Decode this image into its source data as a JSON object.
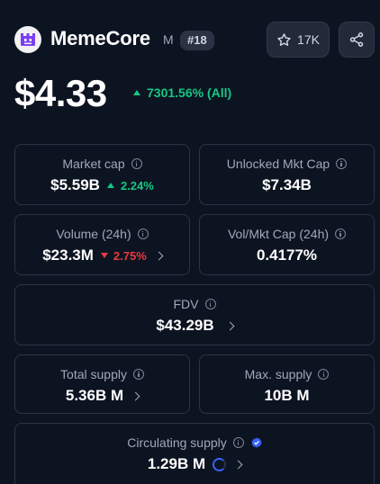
{
  "header": {
    "name": "MemeCore",
    "symbol": "M",
    "rank": "#18",
    "watchlist_count": "17K",
    "icons": {
      "logo": "memecore-logo",
      "watch": "star-icon",
      "share": "share-icon"
    }
  },
  "price": {
    "value": "$4.33",
    "change": "7301.56% (All)",
    "direction": "up",
    "up_color": "#16c784",
    "down_color": "#ea3943"
  },
  "stats": {
    "market_cap": {
      "label": "Market cap",
      "value": "$5.59B",
      "change": "2.24%",
      "direction": "up"
    },
    "unlocked_mkt_cap": {
      "label": "Unlocked Mkt Cap",
      "value": "$7.34B"
    },
    "volume_24h": {
      "label": "Volume (24h)",
      "value": "$23.3M",
      "change": "2.75%",
      "direction": "down"
    },
    "vol_mkt_cap": {
      "label": "Vol/Mkt Cap (24h)",
      "value": "0.4177%"
    },
    "fdv": {
      "label": "FDV",
      "value": "$43.29B"
    },
    "total_supply": {
      "label": "Total supply",
      "value": "5.36B M"
    },
    "max_supply": {
      "label": "Max. supply",
      "value": "10B M"
    },
    "circulating_supply": {
      "label": "Circulating supply",
      "value": "1.29B M",
      "verified_icon": "verified-badge-icon"
    }
  }
}
